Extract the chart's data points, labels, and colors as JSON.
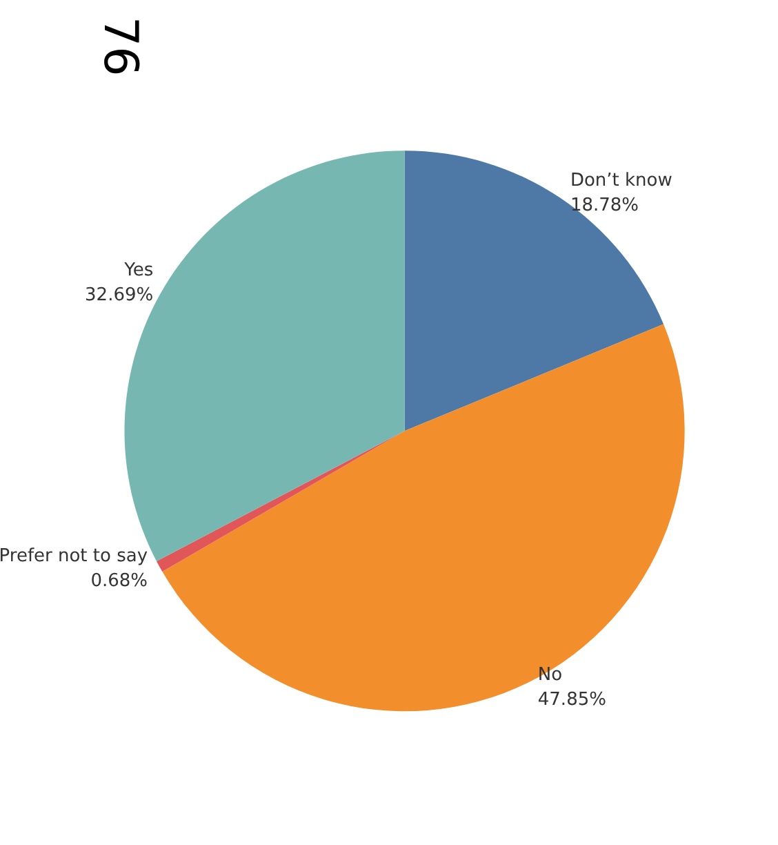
{
  "chart_data": {
    "type": "pie",
    "categories": [
      "Don’t know",
      "No",
      "Prefer not to say",
      "Yes"
    ],
    "values": [
      18.78,
      47.85,
      0.68,
      32.69
    ],
    "value_labels": [
      "18.78%",
      "47.85%",
      "0.68%",
      "32.69%"
    ],
    "colors": [
      "#4e79a7",
      "#f28e2b",
      "#e15759",
      "#76b7b2"
    ],
    "annotations": [
      "76"
    ],
    "legend": false
  }
}
